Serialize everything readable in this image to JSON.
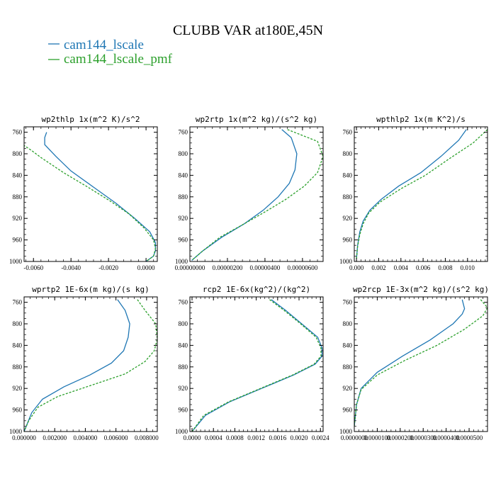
{
  "figure": {
    "title": "CLUBB VAR at180E,45N",
    "legend": [
      {
        "name": "cam144_lscale",
        "color": "#1f77b4",
        "dash": "solid"
      },
      {
        "name": "cam144_lscale_pmf",
        "color": "#2ca02c",
        "dash": "dashed"
      }
    ]
  },
  "chart_data": [
    {
      "type": "line",
      "title": "wp2thlp  1x(m^2 K)/s^2",
      "xlim": [
        -0.0065,
        0.0006
      ],
      "ylim": [
        1000,
        750
      ],
      "xticks": [
        -0.006,
        -0.004,
        -0.002,
        0.0
      ],
      "xtick_labels": [
        "-0.0060",
        "-0.0040",
        "-0.0020",
        "0.0000"
      ],
      "yticks": [
        760,
        800,
        840,
        880,
        920,
        960,
        1000
      ],
      "ytick_labels": [
        "760",
        "800",
        "840",
        "880",
        "920",
        "960",
        "1000"
      ],
      "series": [
        {
          "name": "cam144_lscale",
          "color": "#1f77b4",
          "dash": "solid",
          "x": [
            -0.0053,
            -0.0054,
            -0.0054,
            -0.0048,
            -0.004,
            -0.0028,
            -0.0016,
            -0.0006,
            0.0002,
            0.0005,
            0.0005,
            0.0004,
            0.0
          ],
          "y": [
            760,
            770,
            783,
            805,
            832,
            862,
            892,
            920,
            945,
            965,
            980,
            990,
            1000
          ]
        },
        {
          "name": "cam144_lscale_pmf",
          "color": "#2ca02c",
          "dash": "dashed",
          "x": [
            -0.0067,
            -0.0061,
            -0.0056,
            -0.0044,
            -0.0031,
            -0.0019,
            -0.0009,
            -0.0001,
            0.0004,
            0.0005,
            0.0004,
            0.0
          ],
          "y": [
            780,
            794,
            807,
            835,
            862,
            888,
            912,
            938,
            960,
            976,
            990,
            1000
          ]
        }
      ]
    },
    {
      "type": "line",
      "title": "wp2rtp  1x(m^2 kg)/(s^2 kg)",
      "xlim": [
        0.0,
        7.1e-06
      ],
      "ylim": [
        1000,
        750
      ],
      "xticks": [
        0.0,
        2e-06,
        4e-06,
        6e-06
      ],
      "xtick_labels": [
        "0.00000000",
        "0.00000200",
        "0.00000400",
        "0.00000600"
      ],
      "yticks": [
        760,
        800,
        840,
        880,
        920,
        960,
        1000
      ],
      "ytick_labels": [
        "760",
        "800",
        "840",
        "880",
        "920",
        "960",
        "1000"
      ],
      "series": [
        {
          "name": "cam144_lscale",
          "color": "#1f77b4",
          "dash": "solid",
          "x": [
            4.9e-06,
            5.4e-06,
            5.7e-06,
            5.6e-06,
            5.3e-06,
            4.7e-06,
            3.9e-06,
            2.9e-06,
            1.7e-06,
            7e-07,
            1e-07
          ],
          "y": [
            755,
            770,
            800,
            830,
            855,
            880,
            905,
            930,
            955,
            980,
            998
          ]
        },
        {
          "name": "cam144_lscale_pmf",
          "color": "#2ca02c",
          "dash": "dashed",
          "x": [
            5.2e-06,
            6.8e-06,
            7.1e-06,
            6.8e-06,
            6.1e-06,
            5.1e-06,
            4e-06,
            2.8e-06,
            1.6e-06,
            7e-07,
            1e-07
          ],
          "y": [
            755,
            777,
            805,
            835,
            860,
            885,
            908,
            932,
            955,
            980,
            998
          ]
        }
      ]
    },
    {
      "type": "line",
      "title": "wpthlp2  1x(m K^2)/s",
      "xlim": [
        -0.0002,
        0.0118
      ],
      "ylim": [
        1000,
        750
      ],
      "xticks": [
        0.0,
        0.002,
        0.004,
        0.006,
        0.008,
        0.01
      ],
      "xtick_labels": [
        "0.000",
        "0.002",
        "0.004",
        "0.006",
        "0.008",
        "0.010"
      ],
      "yticks": [
        760,
        800,
        840,
        880,
        920,
        960,
        1000
      ],
      "ytick_labels": [
        "760",
        "800",
        "840",
        "880",
        "920",
        "960",
        "1000"
      ],
      "series": [
        {
          "name": "cam144_lscale",
          "color": "#1f77b4",
          "dash": "solid",
          "x": [
            0.0099,
            0.0092,
            0.0076,
            0.0058,
            0.0038,
            0.0022,
            0.0012,
            0.0006,
            0.0003,
            0.0001,
            0.0
          ],
          "y": [
            755,
            775,
            805,
            835,
            860,
            885,
            905,
            925,
            945,
            970,
            995
          ]
        },
        {
          "name": "cam144_lscale_pmf",
          "color": "#2ca02c",
          "dash": "dashed",
          "x": [
            0.0118,
            0.0105,
            0.0083,
            0.0062,
            0.004,
            0.0021,
            0.0011,
            0.0006,
            0.0003,
            0.0001,
            0.0
          ],
          "y": [
            755,
            780,
            810,
            840,
            865,
            890,
            910,
            930,
            950,
            972,
            995
          ]
        }
      ]
    },
    {
      "type": "line",
      "title": "wprtp2  1E-6x(m kg)/(s kg)",
      "xlim": [
        0.0,
        0.0087
      ],
      "ylim": [
        1000,
        750
      ],
      "xticks": [
        0.0,
        0.002,
        0.004,
        0.006,
        0.008
      ],
      "xtick_labels": [
        "0.000000",
        "0.002000",
        "0.004000",
        "0.006000",
        "0.008000"
      ],
      "yticks": [
        760,
        800,
        840,
        880,
        920,
        960,
        1000
      ],
      "ytick_labels": [
        "760",
        "800",
        "840",
        "880",
        "920",
        "960",
        "1000"
      ],
      "series": [
        {
          "name": "cam144_lscale",
          "color": "#1f77b4",
          "dash": "solid",
          "x": [
            0.0061,
            0.0066,
            0.0069,
            0.0068,
            0.0065,
            0.0057,
            0.0043,
            0.0026,
            0.0012,
            0.0005,
            0.0
          ],
          "y": [
            755,
            775,
            800,
            825,
            850,
            873,
            895,
            917,
            940,
            965,
            1000
          ]
        },
        {
          "name": "cam144_lscale_pmf",
          "color": "#2ca02c",
          "dash": "dashed",
          "x": [
            0.0074,
            0.0079,
            0.0086,
            0.0087,
            0.0085,
            0.0079,
            0.0066,
            0.0043,
            0.0022,
            0.0009,
            0.0003,
            0.0
          ],
          "y": [
            755,
            775,
            800,
            828,
            850,
            870,
            893,
            915,
            935,
            955,
            980,
            1000
          ]
        }
      ]
    },
    {
      "type": "line",
      "title": "rcp2  1E-6x(kg^2)/(kg^2)",
      "xlim": [
        -4e-05,
        0.00245
      ],
      "ylim": [
        1000,
        750
      ],
      "xticks": [
        0.0,
        0.0004,
        0.0008,
        0.0012,
        0.0016,
        0.002,
        0.0024
      ],
      "xtick_labels": [
        "0.0000",
        "0.0004",
        "0.0008",
        "0.0012",
        "0.0016",
        "0.0020",
        "0.0024"
      ],
      "yticks": [
        760,
        800,
        840,
        880,
        920,
        960,
        1000
      ],
      "ytick_labels": [
        "760",
        "800",
        "840",
        "880",
        "920",
        "960",
        "1000"
      ],
      "series": [
        {
          "name": "cam144_lscale",
          "color": "#1f77b4",
          "dash": "solid",
          "x": [
            0.00148,
            0.00175,
            0.00205,
            0.00235,
            0.00243,
            0.00243,
            0.0023,
            0.0019,
            0.0013,
            0.0007,
            0.00025,
            0.0
          ],
          "y": [
            755,
            775,
            800,
            825,
            845,
            860,
            875,
            895,
            920,
            945,
            970,
            1000
          ]
        },
        {
          "name": "cam144_lscale_pmf",
          "color": "#2ca02c",
          "dash": "dashed",
          "x": [
            0.00145,
            0.00172,
            0.00203,
            0.00232,
            0.00241,
            0.00241,
            0.00228,
            0.00188,
            0.00128,
            0.00068,
            0.00022,
            0.0
          ],
          "y": [
            755,
            775,
            800,
            825,
            845,
            860,
            875,
            895,
            920,
            945,
            970,
            1000
          ]
        }
      ]
    },
    {
      "type": "line",
      "title": "wp2rcp  1E-3x(m^2 kg)/(s^2 kg)",
      "xlim": [
        0.0,
        5.8e-05
      ],
      "ylim": [
        1000,
        750
      ],
      "xticks": [
        0.0,
        1e-05,
        2e-05,
        3e-05,
        4e-05,
        5e-05
      ],
      "xtick_labels": [
        "0.0000000",
        "0.0000100",
        "0.0000200",
        "0.0000300",
        "0.0000400",
        "0.0000500"
      ],
      "yticks": [
        760,
        800,
        840,
        880,
        920,
        960,
        1000
      ],
      "ytick_labels": [
        "760",
        "800",
        "840",
        "880",
        "920",
        "960",
        "1000"
      ],
      "series": [
        {
          "name": "cam144_lscale",
          "color": "#1f77b4",
          "dash": "solid",
          "x": [
            4.7e-05,
            4.8e-05,
            4.7e-05,
            4.3e-05,
            3.3e-05,
            2.1e-05,
            1e-05,
            3e-06,
            1e-06,
            0.0
          ],
          "y": [
            755,
            772,
            782,
            800,
            830,
            860,
            890,
            920,
            950,
            990
          ]
        },
        {
          "name": "cam144_lscale_pmf",
          "color": "#2ca02c",
          "dash": "dashed",
          "x": [
            5.5e-05,
            5.8e-05,
            5.6e-05,
            4.8e-05,
            3.6e-05,
            2.2e-05,
            1e-05,
            3e-06,
            1e-06,
            0.0
          ],
          "y": [
            755,
            770,
            785,
            810,
            840,
            868,
            895,
            922,
            950,
            990
          ]
        }
      ]
    }
  ]
}
